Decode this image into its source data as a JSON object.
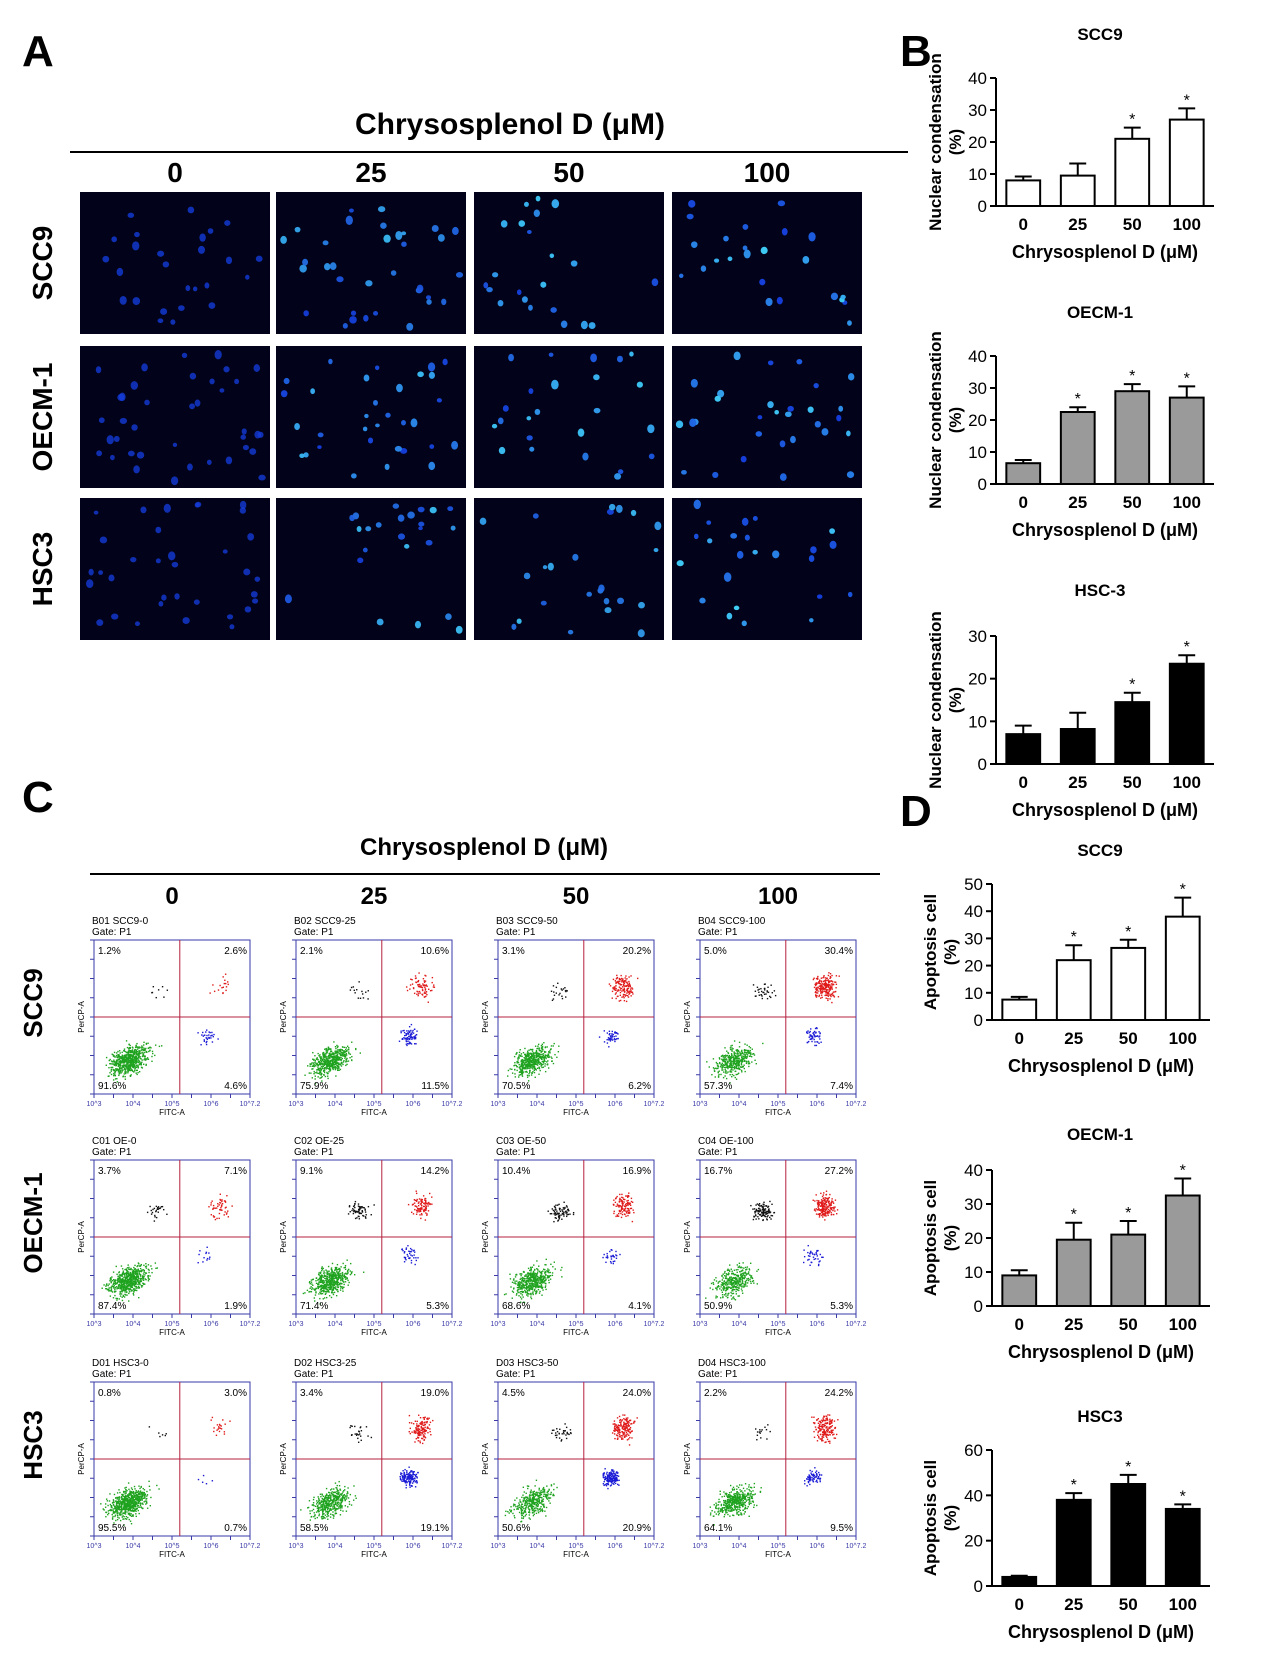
{
  "panel_labels": {
    "A": "A",
    "B": "B",
    "C": "C",
    "D": "D"
  },
  "panelA": {
    "title": "Chrysosplenol D (μM)",
    "concentrations": [
      "0",
      "25",
      "50",
      "100"
    ],
    "cell_lines": [
      "SCC9",
      "OECM-1",
      "HSC3"
    ],
    "stain_color": "#2e6bff",
    "nuclei_per_image": [
      [
        26,
        34,
        22,
        24
      ],
      [
        38,
        32,
        24,
        30
      ],
      [
        34,
        24,
        24,
        24
      ]
    ],
    "brightness": [
      [
        0.55,
        0.85,
        0.9,
        0.95
      ],
      [
        0.5,
        0.9,
        0.9,
        0.95
      ],
      [
        0.5,
        0.85,
        0.85,
        0.95
      ]
    ]
  },
  "panelC": {
    "title": "Chrysosplenol D (μM)",
    "concentrations": [
      "0",
      "25",
      "50",
      "100"
    ],
    "cell_lines": [
      "SCC9",
      "OECM-1",
      "HSC3"
    ],
    "gate_label": "Gate: P1",
    "x_axis_label": "FITC-A",
    "y_axis_label": "PerCP-A",
    "x_ticks": [
      "10^3",
      "10^4",
      "10^5",
      "10^6",
      "10^7.2"
    ],
    "colors": {
      "live": "#1fa31f",
      "early": "#1a1ad6",
      "late": "#e01a1a",
      "necrotic": "#111111",
      "gate_line": "#b5203f",
      "frame": "#3a3aa8"
    },
    "plots": [
      [
        {
          "name": "B01 SCC9-0",
          "ul": "1.2%",
          "ur": "2.6%",
          "ll": "91.6%",
          "lr": "4.6%"
        },
        {
          "name": "B02 SCC9-25",
          "ul": "2.1%",
          "ur": "10.6%",
          "ll": "75.9%",
          "lr": "11.5%"
        },
        {
          "name": "B03 SCC9-50",
          "ul": "3.1%",
          "ur": "20.2%",
          "ll": "70.5%",
          "lr": "6.2%"
        },
        {
          "name": "B04 SCC9-100",
          "ul": "5.0%",
          "ur": "30.4%",
          "ll": "57.3%",
          "lr": "7.4%"
        }
      ],
      [
        {
          "name": "C01 OE-0",
          "ul": "3.7%",
          "ur": "7.1%",
          "ll": "87.4%",
          "lr": "1.9%"
        },
        {
          "name": "C02 OE-25",
          "ul": "9.1%",
          "ur": "14.2%",
          "ll": "71.4%",
          "lr": "5.3%"
        },
        {
          "name": "C03 OE-50",
          "ul": "10.4%",
          "ur": "16.9%",
          "ll": "68.6%",
          "lr": "4.1%"
        },
        {
          "name": "C04 OE-100",
          "ul": "16.7%",
          "ur": "27.2%",
          "ll": "50.9%",
          "lr": "5.3%"
        }
      ],
      [
        {
          "name": "D01 HSC3-0",
          "ul": "0.8%",
          "ur": "3.0%",
          "ll": "95.5%",
          "lr": "0.7%"
        },
        {
          "name": "D02 HSC3-25",
          "ul": "3.4%",
          "ur": "19.0%",
          "ll": "58.5%",
          "lr": "19.1%"
        },
        {
          "name": "D03 HSC3-50",
          "ul": "4.5%",
          "ur": "24.0%",
          "ll": "50.6%",
          "lr": "20.9%"
        },
        {
          "name": "D04 HSC3-100",
          "ul": "2.2%",
          "ur": "24.2%",
          "ll": "64.1%",
          "lr": "9.5%"
        }
      ]
    ]
  },
  "chart_data": [
    {
      "type": "bar",
      "panel": "B",
      "title": "SCC9",
      "categories": [
        "0",
        "25",
        "50",
        "100"
      ],
      "values": [
        8,
        9.5,
        21,
        27
      ],
      "errors": [
        1.2,
        3.8,
        3.5,
        3.5
      ],
      "significance": [
        "",
        "",
        "*",
        "*"
      ],
      "ylabel": "Nuclear condensation (%)",
      "xlabel": "Chrysosplenol D (μM)",
      "ylim": [
        0,
        40
      ],
      "yticks": [
        "0",
        "10",
        "20",
        "30",
        "40"
      ],
      "bar_color": "#ffffff"
    },
    {
      "type": "bar",
      "panel": "B",
      "title": "OECM-1",
      "categories": [
        "0",
        "25",
        "50",
        "100"
      ],
      "values": [
        6.5,
        22.5,
        29,
        27
      ],
      "errors": [
        1,
        1.5,
        2.2,
        3.5
      ],
      "significance": [
        "",
        "*",
        "*",
        "*"
      ],
      "ylabel": "Nuclear condensation (%)",
      "xlabel": "Chrysosplenol D (μM)",
      "ylim": [
        0,
        40
      ],
      "yticks": [
        "0",
        "10",
        "20",
        "30",
        "40"
      ],
      "bar_color": "#9a9a9a"
    },
    {
      "type": "bar",
      "panel": "B",
      "title": "HSC-3",
      "categories": [
        "0",
        "25",
        "50",
        "100"
      ],
      "values": [
        7,
        8.2,
        14.5,
        23.5
      ],
      "errors": [
        2,
        3.8,
        2.2,
        2
      ],
      "significance": [
        "",
        "",
        "*",
        "*"
      ],
      "ylabel": "Nuclear condensation (%)",
      "xlabel": "Chrysosplenol D (μM)",
      "ylim": [
        0,
        30
      ],
      "yticks": [
        "0",
        "10",
        "20",
        "30"
      ],
      "bar_color": "#000000"
    },
    {
      "type": "bar",
      "panel": "D",
      "title": "SCC9",
      "categories": [
        "0",
        "25",
        "50",
        "100"
      ],
      "values": [
        7.5,
        22,
        26.5,
        38
      ],
      "errors": [
        1,
        5.5,
        3,
        7
      ],
      "significance": [
        "",
        "*",
        "*",
        "*"
      ],
      "ylabel": "Apoptosis cell (%)",
      "xlabel": "Chrysosplenol D (μM)",
      "ylim": [
        0,
        50
      ],
      "yticks": [
        "0",
        "10",
        "20",
        "30",
        "40",
        "50"
      ],
      "bar_color": "#ffffff"
    },
    {
      "type": "bar",
      "panel": "D",
      "title": "OECM-1",
      "categories": [
        "0",
        "25",
        "50",
        "100"
      ],
      "values": [
        9,
        19.5,
        21,
        32.5
      ],
      "errors": [
        1.5,
        5,
        4,
        5
      ],
      "significance": [
        "",
        "*",
        "*",
        "*"
      ],
      "ylabel": "Apoptosis cell (%)",
      "xlabel": "Chrysosplenol D (μM)",
      "ylim": [
        0,
        40
      ],
      "yticks": [
        "0",
        "10",
        "20",
        "30",
        "40"
      ],
      "bar_color": "#9a9a9a"
    },
    {
      "type": "bar",
      "panel": "D",
      "title": "HSC3",
      "categories": [
        "0",
        "25",
        "50",
        "100"
      ],
      "values": [
        4,
        38,
        45,
        34
      ],
      "errors": [
        0.5,
        3,
        4,
        2
      ],
      "significance": [
        "",
        "*",
        "*",
        "*"
      ],
      "ylabel": "Apoptosis cell (%)",
      "xlabel": "Chrysosplenol D (μM)",
      "ylim": [
        0,
        60
      ],
      "yticks": [
        "0",
        "20",
        "40",
        "60"
      ],
      "bar_color": "#000000"
    }
  ]
}
